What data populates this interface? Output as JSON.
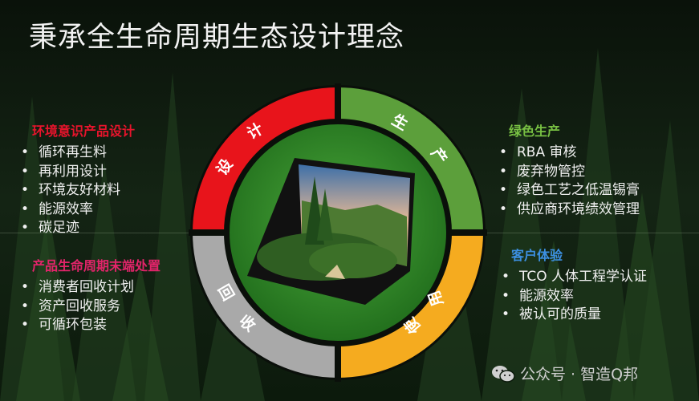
{
  "title": "秉承全生命周期生态设计理念",
  "left_top": {
    "heading": "环境意识产品设计",
    "heading_color": "#e8142c",
    "items": [
      "循环再生料",
      "再利用设计",
      "环境友好材料",
      "能源效率",
      "碳足迹"
    ]
  },
  "left_bottom": {
    "heading": "产品生命周期末端处置",
    "heading_color": "#e2246a",
    "items": [
      "消费者回收计划",
      "资产回收服务",
      "可循环包装"
    ]
  },
  "right_top": {
    "heading": "绿色生产",
    "heading_color": "#78c043",
    "items": [
      "RBA 审核",
      "废弃物管控",
      "绿色工艺之低温锡膏",
      "供应商环境绩效管理"
    ]
  },
  "right_bottom": {
    "heading": "客户体验",
    "heading_color": "#3c8fe0",
    "items": [
      "TCO 人体工程学认证",
      "能源效率",
      "被认可的质量"
    ]
  },
  "ring": {
    "design": {
      "chars": [
        "设",
        "计"
      ],
      "color": "#e8141b"
    },
    "production": {
      "chars": [
        "生",
        "产"
      ],
      "color": "#5c9f3b"
    },
    "use": {
      "chars": [
        "使",
        "用"
      ],
      "color": "#f5ab1f"
    },
    "recycle": {
      "chars": [
        "回",
        "收"
      ],
      "color": "#a9a9a9"
    }
  },
  "watermark": {
    "icon": "wechat-icon",
    "text": "公众号 · 智造Q邦"
  }
}
